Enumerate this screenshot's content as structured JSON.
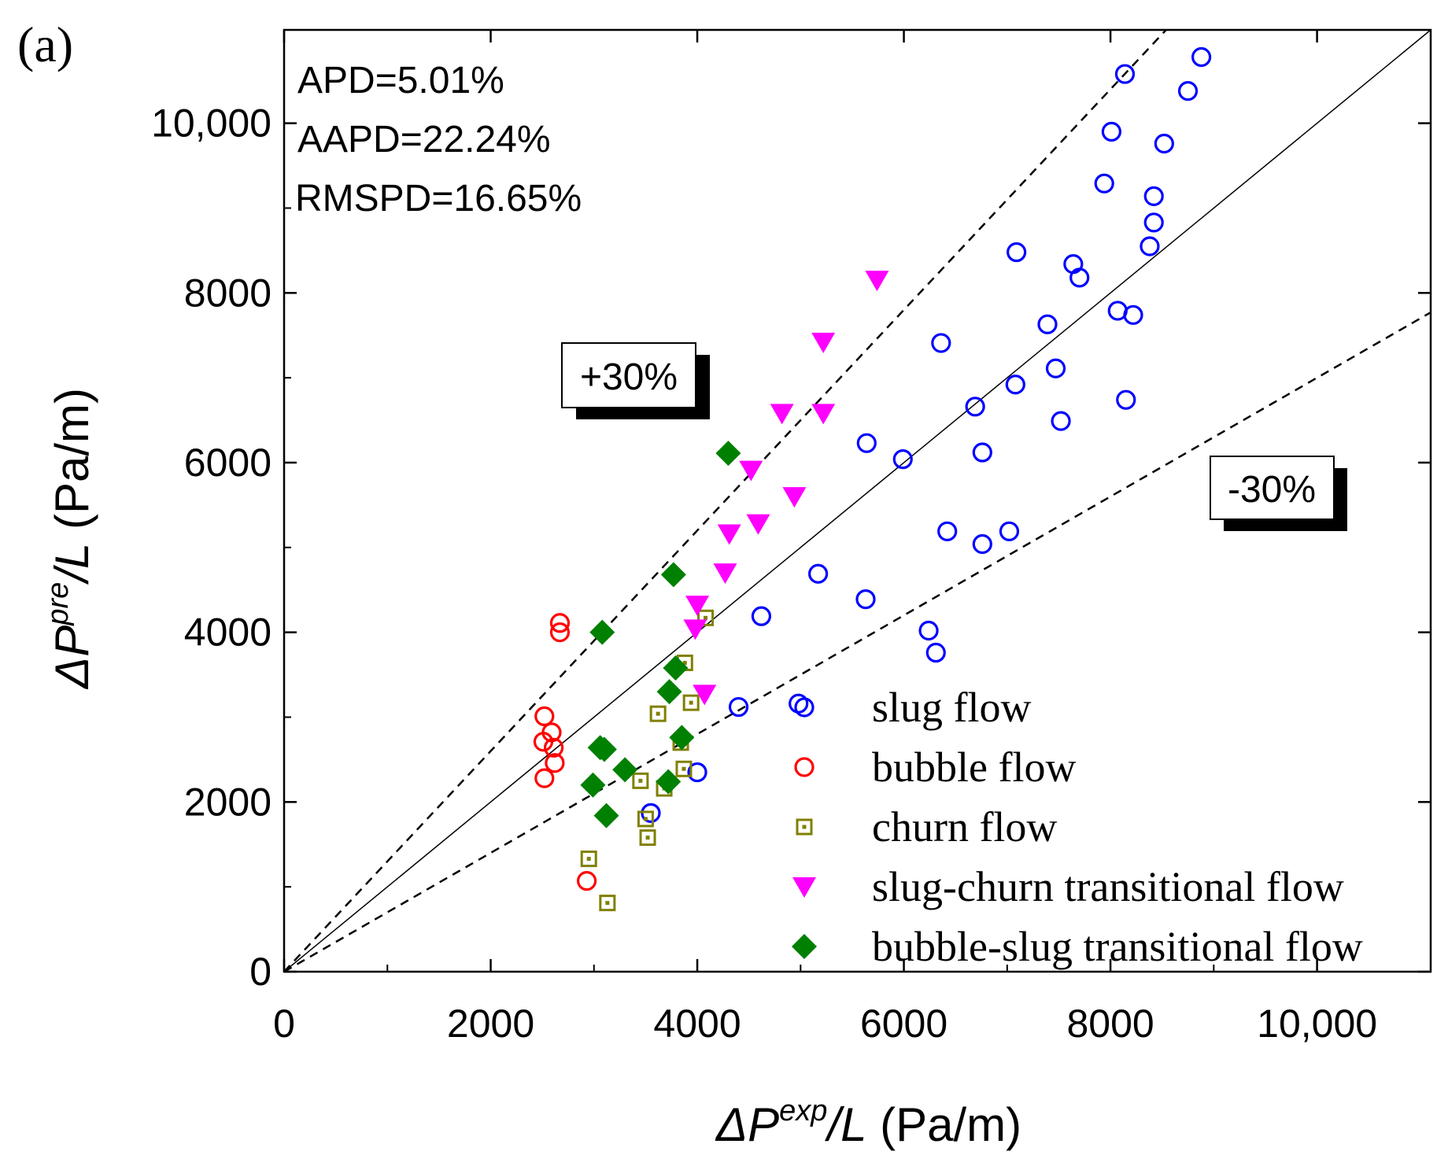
{
  "chart_data": {
    "type": "scatter",
    "panel_label": "(a)",
    "xlabel": {
      "prefix": "ΔP",
      "sup": "exp",
      "suffix": "/L",
      "unit": " (Pa/m)"
    },
    "ylabel": {
      "prefix": "ΔP",
      "sup": "pre",
      "suffix": "/L",
      "unit": " (Pa/m)"
    },
    "xlim": [
      0,
      11100
    ],
    "ylim": [
      0,
      11100
    ],
    "x_ticks": [
      {
        "value": 0,
        "label": "0"
      },
      {
        "value": 2000,
        "label": "2000"
      },
      {
        "value": 4000,
        "label": "4000"
      },
      {
        "value": 6000,
        "label": "6000"
      },
      {
        "value": 8000,
        "label": "8000"
      },
      {
        "value": 10000,
        "label": "10,000"
      }
    ],
    "y_ticks": [
      {
        "value": 0,
        "label": "0"
      },
      {
        "value": 2000,
        "label": "2000"
      },
      {
        "value": 4000,
        "label": "4000"
      },
      {
        "value": 6000,
        "label": "6000"
      },
      {
        "value": 8000,
        "label": "8000"
      },
      {
        "value": 10000,
        "label": "10,000"
      }
    ],
    "stats": [
      "APD=5.01%",
      "AAPD=22.24%",
      "RMSPD=16.65%"
    ],
    "reference_lines": [
      {
        "name": "plus-30-line",
        "slope": 1.3,
        "style": "dashed",
        "label": "+30%"
      },
      {
        "name": "identity-line",
        "slope": 1.0,
        "style": "solid",
        "label": ""
      },
      {
        "name": "minus-30-line",
        "slope": 0.7,
        "style": "dashed",
        "label": "-30%"
      }
    ],
    "legend_position": "bottom-right",
    "series": [
      {
        "name": "slug flow",
        "marker": "circle-open",
        "color": "#0000ff",
        "points": [
          [
            8880,
            10780
          ],
          [
            8140,
            10580
          ],
          [
            8750,
            10380
          ],
          [
            8010,
            9900
          ],
          [
            8520,
            9760
          ],
          [
            7940,
            9290
          ],
          [
            8420,
            9140
          ],
          [
            8420,
            8830
          ],
          [
            8380,
            8550
          ],
          [
            7090,
            8480
          ],
          [
            7640,
            8340
          ],
          [
            7700,
            8180
          ],
          [
            8070,
            7790
          ],
          [
            8220,
            7740
          ],
          [
            7390,
            7630
          ],
          [
            6360,
            7410
          ],
          [
            7470,
            7110
          ],
          [
            7080,
            6920
          ],
          [
            6690,
            6660
          ],
          [
            8150,
            6740
          ],
          [
            7520,
            6490
          ],
          [
            6760,
            6120
          ],
          [
            5640,
            6230
          ],
          [
            5990,
            6040
          ],
          [
            6420,
            5190
          ],
          [
            7020,
            5190
          ],
          [
            6760,
            5040
          ],
          [
            5170,
            4690
          ],
          [
            5630,
            4390
          ],
          [
            4620,
            4190
          ],
          [
            6240,
            4020
          ],
          [
            6310,
            3760
          ],
          [
            4400,
            3120
          ],
          [
            4980,
            3160
          ],
          [
            4000,
            2350
          ],
          [
            3550,
            1870
          ]
        ]
      },
      {
        "name": "bubble flow",
        "marker": "circle-open",
        "color": "#ff0000",
        "points": [
          [
            2670,
            4110
          ],
          [
            2670,
            4000
          ],
          [
            2520,
            3010
          ],
          [
            2590,
            2820
          ],
          [
            2510,
            2710
          ],
          [
            2610,
            2640
          ],
          [
            2620,
            2460
          ],
          [
            2520,
            2280
          ],
          [
            2930,
            1070
          ]
        ]
      },
      {
        "name": "churn flow",
        "marker": "square-dot",
        "color": "#808000",
        "points": [
          [
            4080,
            4170
          ],
          [
            3880,
            3640
          ],
          [
            3620,
            3040
          ],
          [
            3940,
            3170
          ],
          [
            3840,
            2700
          ],
          [
            3870,
            2390
          ],
          [
            3450,
            2250
          ],
          [
            3680,
            2160
          ],
          [
            3500,
            1800
          ],
          [
            3520,
            1580
          ],
          [
            2950,
            1330
          ],
          [
            3130,
            810
          ]
        ]
      },
      {
        "name": "slug-churn transitional flow",
        "marker": "triangle-down",
        "color": "#ff00ff",
        "points": [
          [
            5740,
            8150
          ],
          [
            5220,
            7420
          ],
          [
            4820,
            6580
          ],
          [
            5220,
            6580
          ],
          [
            4520,
            5910
          ],
          [
            4940,
            5600
          ],
          [
            4310,
            5160
          ],
          [
            4590,
            5280
          ],
          [
            4270,
            4700
          ],
          [
            4000,
            4320
          ],
          [
            3980,
            4040
          ],
          [
            4070,
            3270
          ]
        ]
      },
      {
        "name": "bubble-slug transitional flow",
        "marker": "diamond",
        "color": "#008000",
        "points": [
          [
            4300,
            6110
          ],
          [
            3770,
            4680
          ],
          [
            3080,
            4000
          ],
          [
            3790,
            3580
          ],
          [
            3730,
            3300
          ],
          [
            3850,
            2760
          ],
          [
            3060,
            2640
          ],
          [
            3100,
            2620
          ],
          [
            3300,
            2380
          ],
          [
            2990,
            2200
          ],
          [
            3720,
            2240
          ],
          [
            3120,
            1840
          ]
        ]
      }
    ]
  }
}
